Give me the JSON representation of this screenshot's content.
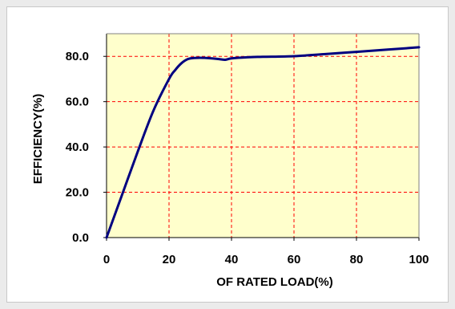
{
  "chart_data": {
    "type": "line",
    "title": "",
    "xlabel": "OF RATED LOAD(%)",
    "ylabel": "EFFICIENCY(%)",
    "xlim": [
      0,
      100
    ],
    "ylim": [
      0,
      90
    ],
    "x_ticks": [
      0,
      20,
      40,
      60,
      80,
      100
    ],
    "x_tick_labels": [
      "0",
      "20",
      "40",
      "60",
      "80",
      "100"
    ],
    "y_ticks": [
      0,
      20,
      40,
      60,
      80
    ],
    "y_tick_labels": [
      "0.0",
      "20.0",
      "40.0",
      "60.0",
      "80.0"
    ],
    "grid": true,
    "grid_style": "dashed",
    "grid_color": "#ff0000",
    "plot_background": "#ffffcc",
    "series": [
      {
        "name": "",
        "color": "#000080",
        "x": [
          0,
          5,
          10,
          15,
          20,
          22,
          24,
          26,
          28,
          32,
          36,
          38,
          40,
          45,
          50,
          60,
          70,
          80,
          90,
          100
        ],
        "y": [
          0,
          19,
          38,
          56,
          70,
          74,
          77,
          78.8,
          79.3,
          79.3,
          78.8,
          78.5,
          79.1,
          79.6,
          79.8,
          80.1,
          81,
          82,
          83,
          84
        ]
      }
    ]
  }
}
